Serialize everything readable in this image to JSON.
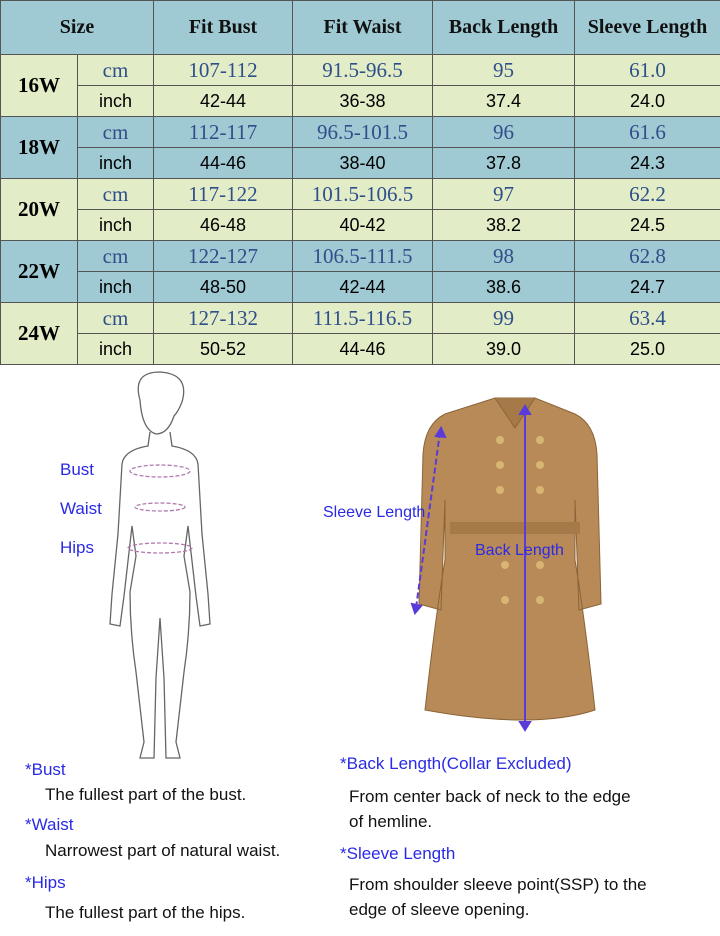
{
  "table": {
    "headers": [
      "Size",
      "Fit Bust",
      "Fit Waist",
      "Back Length",
      "Sleeve Length"
    ],
    "rows": [
      {
        "size": "16W",
        "cm": {
          "unit": "cm",
          "values": [
            "107-112",
            "91.5-96.5",
            "95",
            "61.0"
          ]
        },
        "inch": {
          "unit": "inch",
          "values": [
            "42-44",
            "36-38",
            "37.4",
            "24.0"
          ]
        }
      },
      {
        "size": "18W",
        "cm": {
          "unit": "cm",
          "values": [
            "112-117",
            "96.5-101.5",
            "96",
            "61.6"
          ]
        },
        "inch": {
          "unit": "inch",
          "values": [
            "44-46",
            "38-40",
            "37.8",
            "24.3"
          ]
        }
      },
      {
        "size": "20W",
        "cm": {
          "unit": "cm",
          "values": [
            "117-122",
            "101.5-106.5",
            "97",
            "62.2"
          ]
        },
        "inch": {
          "unit": "inch",
          "values": [
            "46-48",
            "40-42",
            "38.2",
            "24.5"
          ]
        }
      },
      {
        "size": "22W",
        "cm": {
          "unit": "cm",
          "values": [
            "122-127",
            "106.5-111.5",
            "98",
            "62.8"
          ]
        },
        "inch": {
          "unit": "inch",
          "values": [
            "48-50",
            "42-44",
            "38.6",
            "24.7"
          ]
        }
      },
      {
        "size": "24W",
        "cm": {
          "unit": "cm",
          "values": [
            "127-132",
            "111.5-116.5",
            "99",
            "63.4"
          ]
        },
        "inch": {
          "unit": "inch",
          "values": [
            "50-52",
            "44-46",
            "39.0",
            "25.0"
          ]
        }
      }
    ],
    "colors": {
      "blue": "#9fc9d3",
      "green": "#e2ecc6",
      "cm_text": "#2f4f8a"
    }
  },
  "figure_labels": {
    "bust": "Bust",
    "waist": "Waist",
    "hips": "Hips",
    "sleeve_length": "Sleeve Length",
    "back_length": "Back Length"
  },
  "definitions": {
    "bust": {
      "title": "*Bust",
      "text": "The fullest part of the bust."
    },
    "waist": {
      "title": "*Waist",
      "text": "Narrowest part of natural waist."
    },
    "hips": {
      "title": "*Hips",
      "text": "The fullest part of the hips."
    },
    "back_length": {
      "title": "*Back Length(Collar Excluded)",
      "text1": "From center back of neck to the edge",
      "text2": "of hemline."
    },
    "sleeve_length": {
      "title": "*Sleeve Length",
      "text1": "From shoulder sleeve point(SSP) to the",
      "text2": "edge of sleeve opening."
    }
  }
}
